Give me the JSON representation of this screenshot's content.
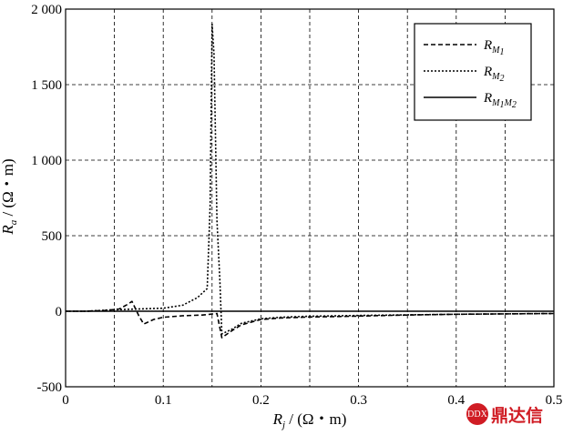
{
  "chart_data": {
    "type": "line",
    "title": "",
    "xlabel": {
      "main": "R",
      "sub": "j",
      "unit": " / (Ω・m)"
    },
    "ylabel": {
      "main": "R",
      "sub": "a",
      "unit": " / (Ω・m)"
    },
    "xlim": [
      0,
      0.5
    ],
    "ylim": [
      -500,
      2000
    ],
    "x_ticks": [
      0,
      0.1,
      0.2,
      0.3,
      0.4,
      0.5
    ],
    "x_tick_labels": [
      "0",
      "0.1",
      "0.2",
      "0.3",
      "0.4",
      "0.5"
    ],
    "y_ticks": [
      -500,
      0,
      500,
      1000,
      1500,
      2000
    ],
    "y_tick_labels": [
      "-500",
      "0",
      "500",
      "1 000",
      "1 500",
      "2 000"
    ],
    "grid": true,
    "legend_position": "top-right",
    "series": [
      {
        "name": "R_M1",
        "legend": {
          "main": "R",
          "sub": "M",
          "subsub": "1"
        },
        "style": "dashed",
        "points": [
          [
            0,
            0
          ],
          [
            0.02,
            0
          ],
          [
            0.04,
            5
          ],
          [
            0.055,
            15
          ],
          [
            0.062,
            40
          ],
          [
            0.068,
            65
          ],
          [
            0.075,
            -30
          ],
          [
            0.08,
            -85
          ],
          [
            0.09,
            -55
          ],
          [
            0.1,
            -40
          ],
          [
            0.12,
            -30
          ],
          [
            0.14,
            -25
          ],
          [
            0.148,
            -20
          ],
          [
            0.155,
            -15
          ],
          [
            0.16,
            -175
          ],
          [
            0.17,
            -130
          ],
          [
            0.18,
            -90
          ],
          [
            0.2,
            -55
          ],
          [
            0.22,
            -45
          ],
          [
            0.25,
            -38
          ],
          [
            0.28,
            -35
          ],
          [
            0.35,
            -25
          ],
          [
            0.4,
            -20
          ],
          [
            0.5,
            -15
          ]
        ]
      },
      {
        "name": "R_M2",
        "legend": {
          "main": "R",
          "sub": "M",
          "subsub": "2"
        },
        "style": "dotted",
        "points": [
          [
            0,
            0
          ],
          [
            0.02,
            0
          ],
          [
            0.05,
            10
          ],
          [
            0.1,
            20
          ],
          [
            0.12,
            40
          ],
          [
            0.135,
            90
          ],
          [
            0.145,
            150
          ],
          [
            0.148,
            700
          ],
          [
            0.15,
            1900
          ],
          [
            0.152,
            1700
          ],
          [
            0.155,
            600
          ],
          [
            0.158,
            200
          ],
          [
            0.16,
            -150
          ],
          [
            0.17,
            -120
          ],
          [
            0.18,
            -80
          ],
          [
            0.2,
            -50
          ],
          [
            0.22,
            -40
          ],
          [
            0.25,
            -33
          ],
          [
            0.3,
            -28
          ],
          [
            0.4,
            -20
          ],
          [
            0.5,
            -15
          ]
        ]
      },
      {
        "name": "R_M1M2",
        "legend": {
          "main": "R",
          "sub": "M",
          "subsub": "1",
          "sub2": "M",
          "subsub2": "2"
        },
        "style": "solid",
        "points": [
          [
            0,
            0
          ],
          [
            0.1,
            0
          ],
          [
            0.2,
            0
          ],
          [
            0.3,
            0
          ],
          [
            0.4,
            0
          ],
          [
            0.5,
            0
          ]
        ]
      }
    ]
  },
  "watermark": {
    "text": "鼎达信",
    "logo_text": "DDX"
  }
}
